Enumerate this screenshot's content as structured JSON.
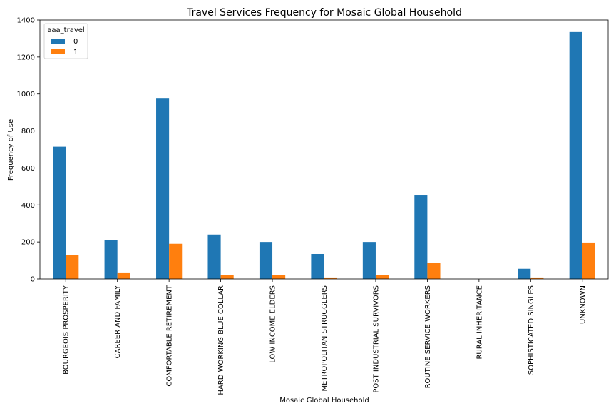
{
  "chart_data": {
    "type": "bar",
    "title": "Travel Services Frequency for Mosaic Global Household",
    "xlabel": "Mosaic Global Household",
    "ylabel": "Frequency of Use",
    "ylim": [
      0,
      1400
    ],
    "yticks": [
      0,
      200,
      400,
      600,
      800,
      1000,
      1200,
      1400
    ],
    "grid": false,
    "legend": {
      "title": "aaa_travel",
      "placement": "top-left"
    },
    "categories": [
      "BOURGEOIS PROSPERITY",
      "CAREER AND FAMILY",
      "COMFORTABLE RETIREMENT",
      "HARD WORKING BLUE COLLAR",
      "LOW INCOME ELDERS",
      "METROPOLITAN STRUGGLERS",
      "POST INDUSTRIAL SURVIVORS",
      "ROUTINE SERVICE WORKERS",
      "RURAL INHERITANCE",
      "SOPHISTICATED SINGLES",
      "UNKNOWN"
    ],
    "series": [
      {
        "name": "0",
        "color": "#1f77b4",
        "values": [
          715,
          210,
          975,
          240,
          200,
          135,
          200,
          455,
          0,
          55,
          1335
        ]
      },
      {
        "name": "1",
        "color": "#ff7f0e",
        "values": [
          128,
          35,
          190,
          22,
          20,
          8,
          22,
          88,
          0,
          8,
          197
        ]
      }
    ]
  }
}
